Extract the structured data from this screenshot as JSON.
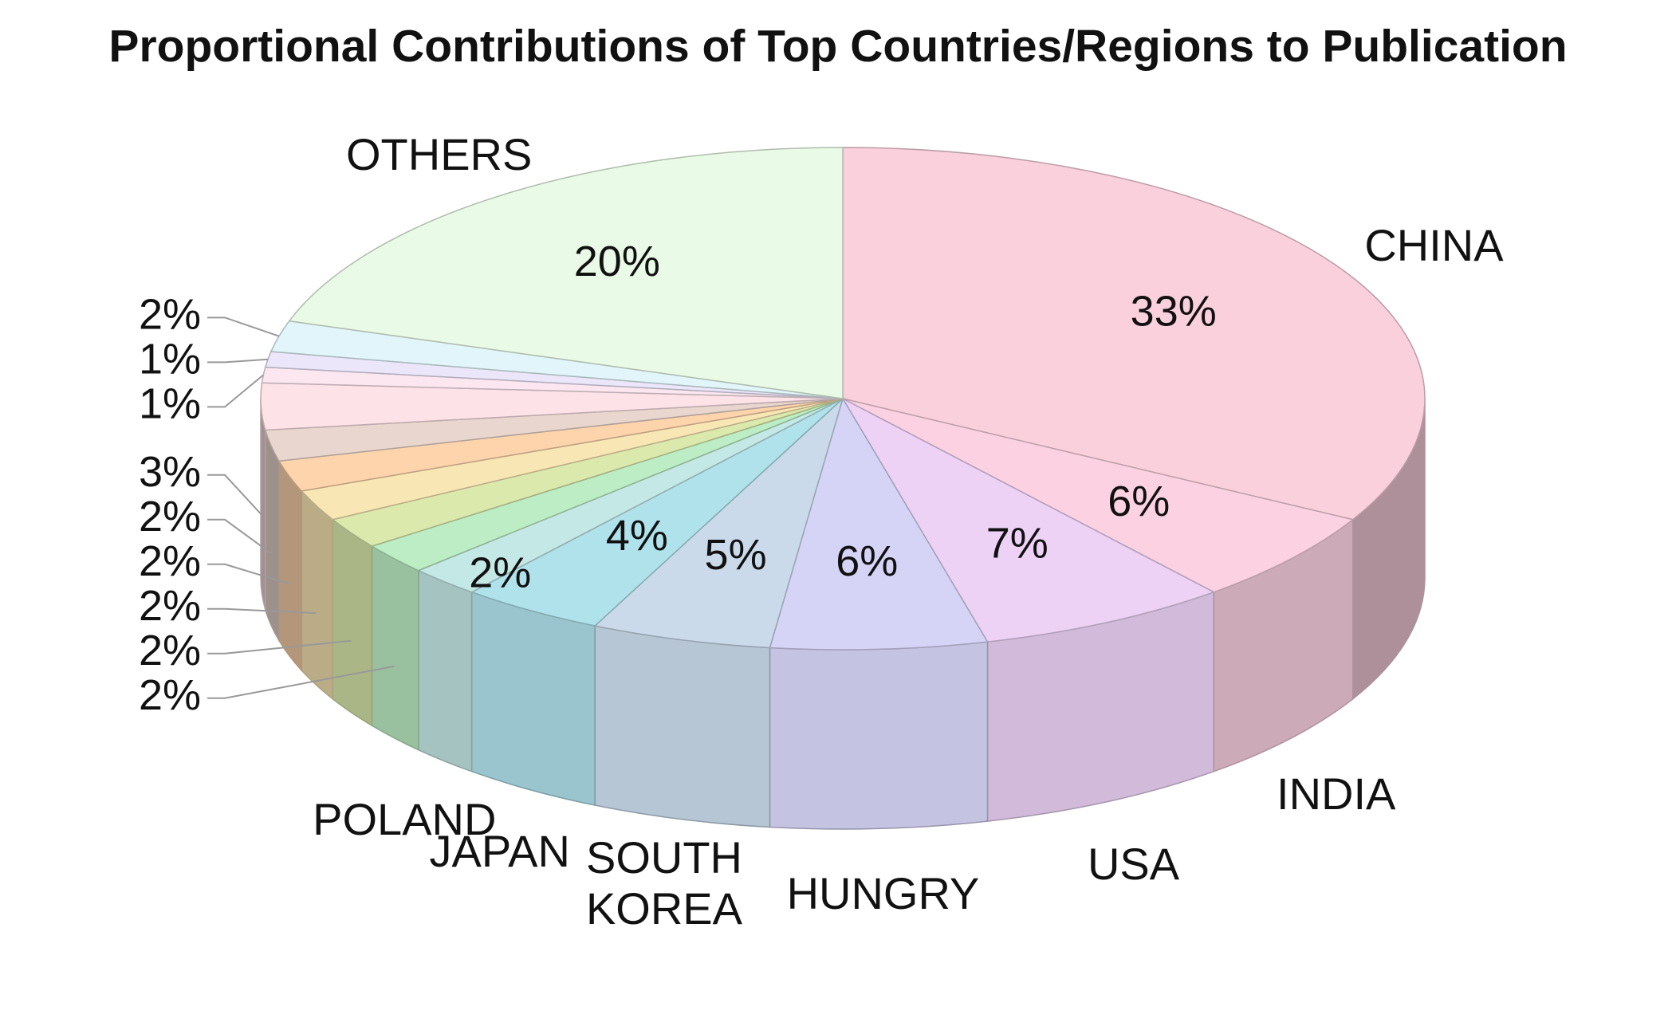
{
  "chart_data": {
    "type": "pie3d",
    "title": "Proportional Contributions of Top Countries/Regions to Publication",
    "categories": [
      "CHINA",
      "INDIA",
      "USA",
      "HUNGRY",
      "SOUTH KOREA",
      "JAPAN",
      "POLAND",
      null,
      null,
      null,
      null,
      null,
      null,
      null,
      null,
      null,
      "OTHERS"
    ],
    "values": [
      33,
      6,
      7,
      6,
      5,
      4,
      2,
      2,
      2,
      2,
      2,
      2,
      3,
      1,
      1,
      2,
      20
    ],
    "value_labels": [
      "33%",
      "6%",
      "7%",
      "6%",
      "5%",
      "4%",
      "2%",
      "2%",
      "2%",
      "2%",
      "2%",
      "2%",
      "3%",
      "1%",
      "1%",
      "2%",
      "20%"
    ],
    "colors": [
      "#f9d0dc",
      "#fcd2e2",
      "#edd2f6",
      "#d6d4f6",
      "#cadaea",
      "#b0e2ec",
      "#c4e8e6",
      "#bcedc4",
      "#dbe9ac",
      "#f8e6b4",
      "#fdd4ab",
      "#e9d6ce",
      "#fde2e8",
      "#fce6f0",
      "#ece6fb",
      "#e2f5fb",
      "#e9fae7"
    ]
  }
}
